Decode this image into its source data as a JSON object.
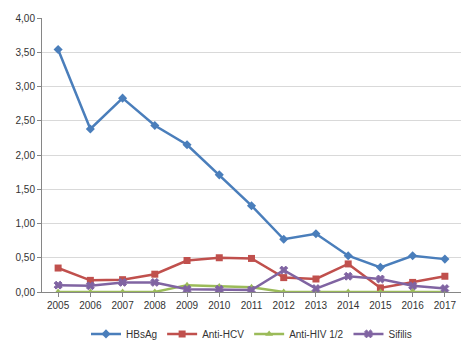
{
  "chart_data": {
    "type": "line",
    "categories": [
      "2005",
      "2006",
      "2007",
      "2008",
      "2009",
      "2010",
      "2011",
      "2012",
      "2013",
      "2014",
      "2015",
      "2016",
      "2017"
    ],
    "series": [
      {
        "name": "HBsAg",
        "color": "#4a7ebb",
        "marker": "diamond",
        "line_style": "solid",
        "values": [
          3.54,
          2.38,
          2.83,
          2.43,
          2.15,
          1.71,
          1.26,
          0.77,
          0.85,
          0.53,
          0.36,
          0.53,
          0.48
        ]
      },
      {
        "name": "Anti-HCV",
        "color": "#c0504d",
        "marker": "square",
        "line_style": "solid",
        "values": [
          0.35,
          0.17,
          0.18,
          0.26,
          0.46,
          0.5,
          0.49,
          0.21,
          0.19,
          0.41,
          0.06,
          0.14,
          0.23
        ]
      },
      {
        "name": "Anti-HIV 1/2",
        "color": "#9bbb59",
        "marker": "triangle-up",
        "line_style": "solid",
        "values": [
          0,
          0,
          0,
          0,
          0.1,
          0.08,
          0.07,
          0,
          0,
          0,
          0,
          0.01,
          0
        ]
      },
      {
        "name": "Sifilis",
        "color": "#8064a2",
        "marker": "x",
        "line_style": "solid",
        "values": [
          0.1,
          0.09,
          0.14,
          0.14,
          0.04,
          0.04,
          0.03,
          0.32,
          0.05,
          0.23,
          0.19,
          0.09,
          0.05
        ]
      }
    ],
    "ylim": [
      0,
      4
    ],
    "yticks": [
      {
        "value": 0,
        "label": "0,00"
      },
      {
        "value": 0.5,
        "label": "0,50"
      },
      {
        "value": 1,
        "label": "1,00"
      },
      {
        "value": 1.5,
        "label": "1,50"
      },
      {
        "value": 2,
        "label": "2,00"
      },
      {
        "value": 2.5,
        "label": "2,50"
      },
      {
        "value": 3,
        "label": "3,00"
      },
      {
        "value": 3.5,
        "label": "3,50"
      },
      {
        "value": 4,
        "label": "4,00"
      }
    ],
    "grid": true,
    "legend": "bottom"
  }
}
